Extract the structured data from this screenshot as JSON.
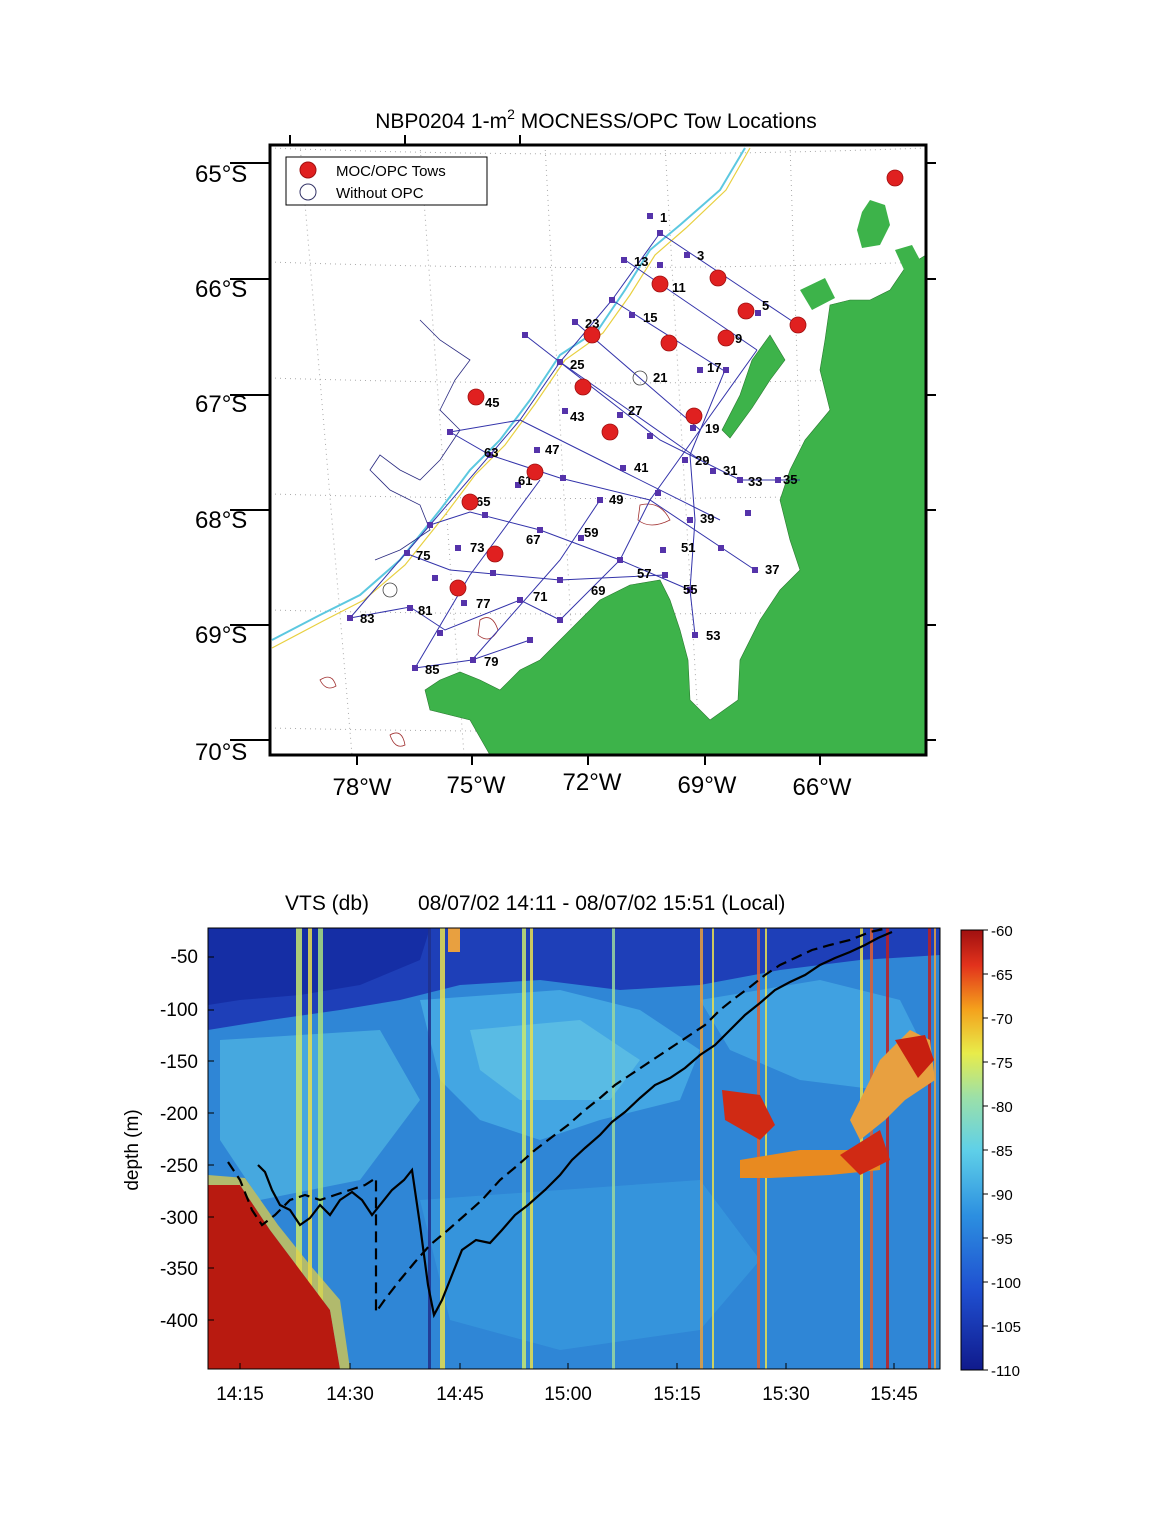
{
  "map": {
    "title_main": "NBP0204 1-m",
    "title_sup": "2",
    "title_rest": " MOCNESS/OPC Tow Locations",
    "lat_labels": [
      "65°S",
      "66°S",
      "67°S",
      "68°S",
      "69°S",
      "70°S"
    ],
    "lon_labels": [
      "78°W",
      "75°W",
      "72°W",
      "69°W",
      "66°W"
    ],
    "legend": {
      "tows_label": "MOC/OPC Tows",
      "without_label": "Without OPC"
    },
    "colors": {
      "land": "#3db34a",
      "tow": "#e02020",
      "station": "#5533aa",
      "track": "#3333aa"
    },
    "station_labels": [
      "1",
      "3",
      "5",
      "9",
      "11",
      "13",
      "15",
      "17",
      "19",
      "21",
      "23",
      "25",
      "27",
      "29",
      "31",
      "33",
      "35",
      "37",
      "39",
      "41",
      "43",
      "45",
      "47",
      "49",
      "51",
      "53",
      "55",
      "57",
      "59",
      "61",
      "63",
      "65",
      "67",
      "69",
      "71",
      "73",
      "75",
      "77",
      "79",
      "81",
      "83",
      "85"
    ]
  },
  "echogram": {
    "title_var": "VTS (db)",
    "title_time": "08/07/02 14:11 - 08/07/02 15:51 (Local)",
    "ylabel": "depth (m)",
    "y_ticks": [
      "-50",
      "-100",
      "-150",
      "-200",
      "-250",
      "-300",
      "-350",
      "-400"
    ],
    "x_ticks": [
      "14:15",
      "14:30",
      "14:45",
      "15:00",
      "15:15",
      "15:30",
      "15:45"
    ],
    "colorbar_ticks": [
      "-60",
      "-65",
      "-70",
      "-75",
      "-80",
      "-85",
      "-90",
      "-95",
      "-100",
      "-105",
      "-110"
    ]
  }
}
